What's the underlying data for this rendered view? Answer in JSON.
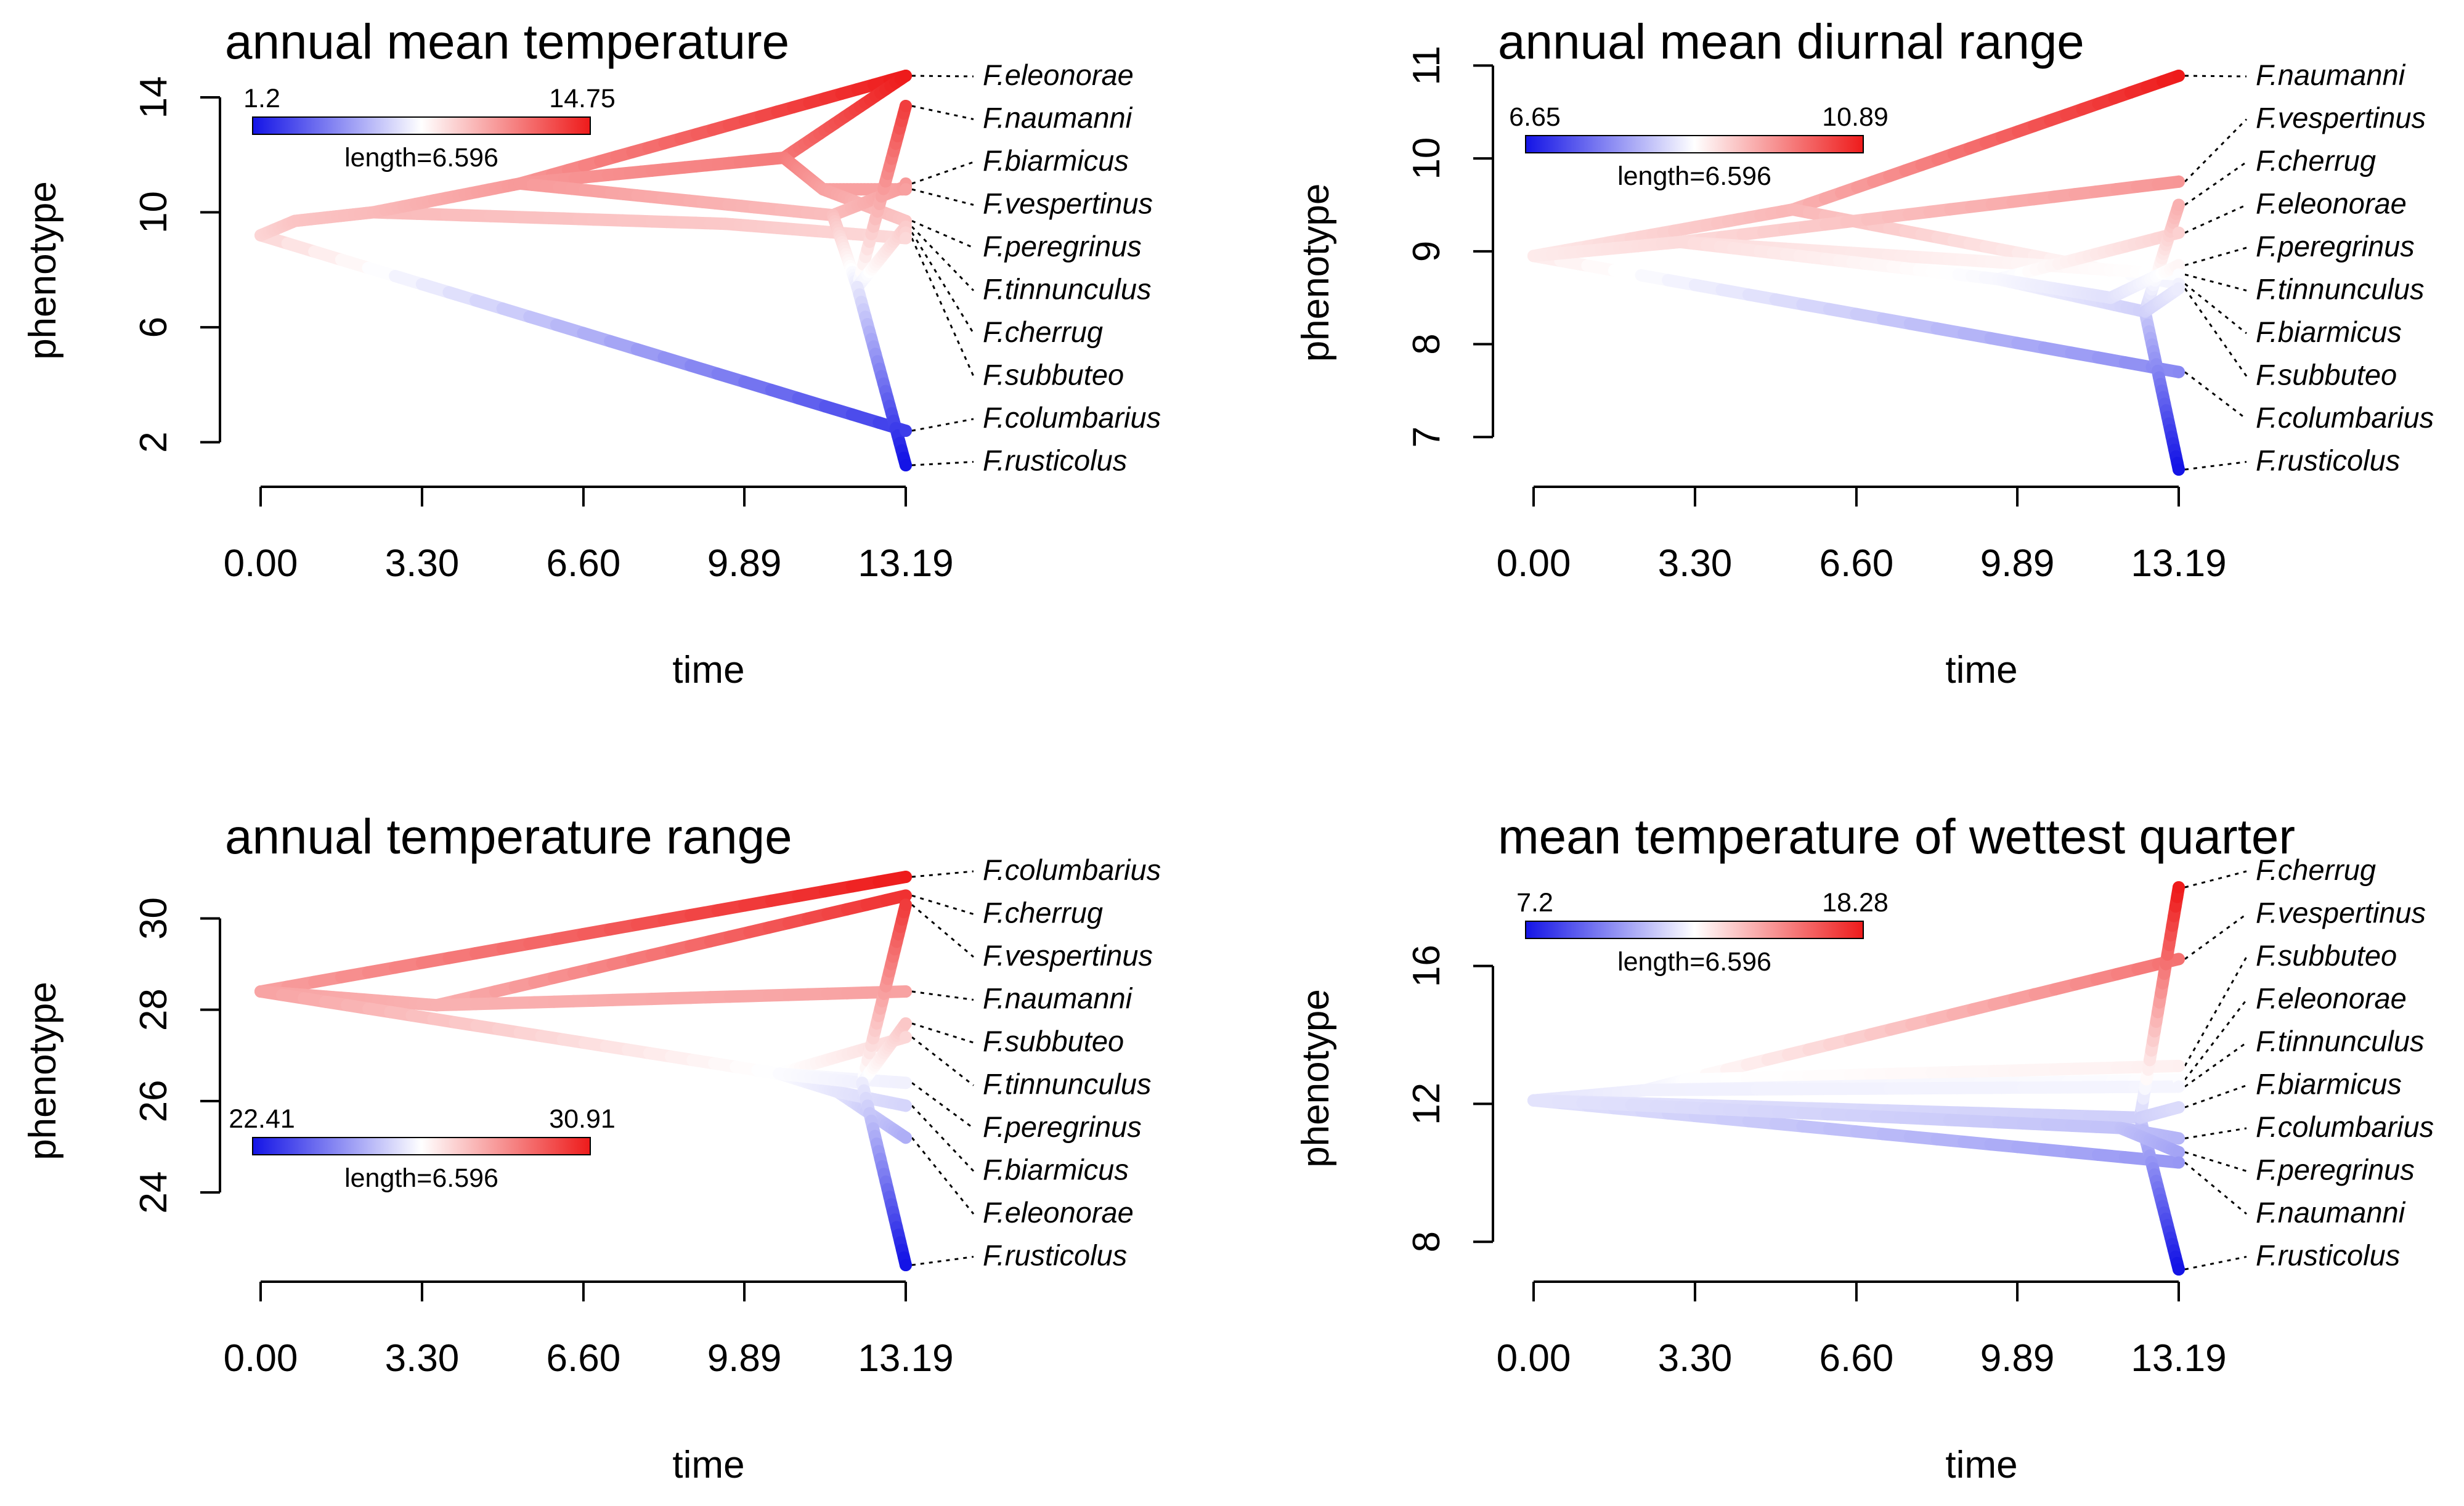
{
  "chart_data": [
    {
      "type": "line",
      "title": "annual mean temperature",
      "xlabel": "time",
      "ylabel": "phenotype",
      "xticks": [
        "0.00",
        "3.30",
        "6.60",
        "9.89",
        "13.19"
      ],
      "xlim": [
        0,
        13.19
      ],
      "yticks": [
        "2",
        "6",
        "10",
        "14"
      ],
      "ylim": [
        1.2,
        14.75
      ],
      "colorbar": {
        "min": "1.2",
        "max": "14.75",
        "length": "length=6.596",
        "low": "#1414e6",
        "mid": "#ffffff",
        "high": "#ee1b1b"
      },
      "tips": [
        {
          "name": "F.eleonorae",
          "value": 14.75
        },
        {
          "name": "F.naumanni",
          "value": 13.7
        },
        {
          "name": "F.biarmicus",
          "value": 11.0
        },
        {
          "name": "F.vespertinus",
          "value": 10.8
        },
        {
          "name": "F.peregrinus",
          "value": 9.7
        },
        {
          "name": "F.tinnunculus",
          "value": 9.5
        },
        {
          "name": "F.cherrug",
          "value": 9.3
        },
        {
          "name": "F.subbuteo",
          "value": 9.1
        },
        {
          "name": "F.columbarius",
          "value": 2.4
        },
        {
          "name": "F.rusticolus",
          "value": 1.2
        }
      ],
      "branches": [
        {
          "t": [
            0,
            13.19
          ],
          "v": [
            9.2,
            2.4
          ]
        },
        {
          "t": [
            0,
            0.7,
            2.3
          ],
          "v": [
            9.2,
            9.7,
            10.0
          ]
        },
        {
          "t": [
            2.3,
            9.5,
            13.19
          ],
          "v": [
            10.0,
            9.6,
            9.1
          ]
        },
        {
          "t": [
            2.3,
            5.3
          ],
          "v": [
            10.0,
            11.0
          ]
        },
        {
          "t": [
            5.3,
            13.19
          ],
          "v": [
            11.0,
            14.75
          ]
        },
        {
          "t": [
            5.3,
            10.7
          ],
          "v": [
            11.0,
            11.9
          ]
        },
        {
          "t": [
            10.7,
            13.19
          ],
          "v": [
            11.9,
            14.75
          ]
        },
        {
          "t": [
            10.7,
            11.5
          ],
          "v": [
            11.9,
            10.8
          ]
        },
        {
          "t": [
            11.5,
            13.19
          ],
          "v": [
            10.8,
            10.8
          ]
        },
        {
          "t": [
            11.5,
            13.19
          ],
          "v": [
            10.8,
            9.7
          ]
        },
        {
          "t": [
            5.3,
            11.7
          ],
          "v": [
            11.0,
            9.9
          ]
        },
        {
          "t": [
            11.7,
            13.19
          ],
          "v": [
            9.9,
            10.9
          ]
        },
        {
          "t": [
            11.7,
            12.2
          ],
          "v": [
            9.9,
            7.4
          ]
        },
        {
          "t": [
            12.2,
            13.19
          ],
          "v": [
            7.4,
            13.7
          ]
        },
        {
          "t": [
            12.2,
            13.19
          ],
          "v": [
            7.4,
            9.5
          ]
        },
        {
          "t": [
            12.2,
            13.19
          ],
          "v": [
            7.4,
            1.2
          ]
        }
      ]
    },
    {
      "type": "line",
      "title": "annual mean diurnal range",
      "xlabel": "time",
      "ylabel": "phenotype",
      "xticks": [
        "0.00",
        "3.30",
        "6.60",
        "9.89",
        "13.19"
      ],
      "xlim": [
        0,
        13.19
      ],
      "yticks": [
        "7",
        "8",
        "9",
        "10",
        "11"
      ],
      "ylim": [
        6.65,
        10.89
      ],
      "colorbar": {
        "min": "6.65",
        "max": "10.89",
        "length": "length=6.596",
        "low": "#1414e6",
        "mid": "#ffffff",
        "high": "#ee1b1b"
      },
      "tips": [
        {
          "name": "F.naumanni",
          "value": 10.89
        },
        {
          "name": "F.vespertinus",
          "value": 9.75
        },
        {
          "name": "F.cherrug",
          "value": 9.5
        },
        {
          "name": "F.eleonorae",
          "value": 9.2
        },
        {
          "name": "F.peregrinus",
          "value": 8.85
        },
        {
          "name": "F.tinnunculus",
          "value": 8.75
        },
        {
          "name": "F.biarmicus",
          "value": 8.65
        },
        {
          "name": "F.subbuteo",
          "value": 8.6
        },
        {
          "name": "F.columbarius",
          "value": 7.7
        },
        {
          "name": "F.rusticolus",
          "value": 6.65
        }
      ],
      "branches": [
        {
          "t": [
            0,
            13.19
          ],
          "v": [
            8.95,
            7.7
          ]
        },
        {
          "t": [
            0,
            5.3
          ],
          "v": [
            8.95,
            9.45
          ]
        },
        {
          "t": [
            5.3,
            13.19
          ],
          "v": [
            9.45,
            10.89
          ]
        },
        {
          "t": [
            5.3,
            13.19
          ],
          "v": [
            9.45,
            8.65
          ]
        },
        {
          "t": [
            0,
            3.0
          ],
          "v": [
            8.95,
            9.1
          ]
        },
        {
          "t": [
            3.0,
            13.19
          ],
          "v": [
            9.1,
            9.75
          ]
        },
        {
          "t": [
            3.0,
            9.0,
            13.19
          ],
          "v": [
            9.1,
            8.9,
            8.75
          ]
        },
        {
          "t": [
            3.0,
            9.5
          ],
          "v": [
            9.1,
            8.7
          ]
        },
        {
          "t": [
            9.5,
            13.19
          ],
          "v": [
            8.7,
            9.2
          ]
        },
        {
          "t": [
            9.5,
            12.5
          ],
          "v": [
            8.7,
            8.35
          ]
        },
        {
          "t": [
            12.5,
            13.19
          ],
          "v": [
            8.35,
            9.5
          ]
        },
        {
          "t": [
            12.5,
            13.19
          ],
          "v": [
            8.35,
            6.65
          ]
        },
        {
          "t": [
            12.5,
            13.19
          ],
          "v": [
            8.35,
            8.6
          ]
        },
        {
          "t": [
            9.5,
            11.8
          ],
          "v": [
            8.7,
            8.5
          ]
        },
        {
          "t": [
            11.8,
            13.19
          ],
          "v": [
            8.5,
            8.85
          ]
        }
      ]
    },
    {
      "type": "line",
      "title": "annual temperature range",
      "xlabel": "time",
      "ylabel": "phenotype",
      "xticks": [
        "0.00",
        "3.30",
        "6.60",
        "9.89",
        "13.19"
      ],
      "xlim": [
        0,
        13.19
      ],
      "yticks": [
        "24",
        "26",
        "28",
        "30"
      ],
      "ylim": [
        22.41,
        30.91
      ],
      "colorbar": {
        "min": "22.41",
        "max": "30.91",
        "length": "length=6.596",
        "low": "#1414e6",
        "mid": "#ffffff",
        "high": "#ee1b1b"
      },
      "tips": [
        {
          "name": "F.columbarius",
          "value": 30.91
        },
        {
          "name": "F.cherrug",
          "value": 30.5
        },
        {
          "name": "F.vespertinus",
          "value": 30.3
        },
        {
          "name": "F.naumanni",
          "value": 28.4
        },
        {
          "name": "F.subbuteo",
          "value": 27.7
        },
        {
          "name": "F.tinnunculus",
          "value": 27.4
        },
        {
          "name": "F.peregrinus",
          "value": 26.4
        },
        {
          "name": "F.biarmicus",
          "value": 25.9
        },
        {
          "name": "F.eleonorae",
          "value": 25.2
        },
        {
          "name": "F.rusticolus",
          "value": 22.41
        }
      ],
      "branches": [
        {
          "t": [
            0,
            13.19
          ],
          "v": [
            28.4,
            30.91
          ]
        },
        {
          "t": [
            0,
            3.6
          ],
          "v": [
            28.4,
            28.1
          ]
        },
        {
          "t": [
            3.6,
            13.19
          ],
          "v": [
            28.1,
            30.5
          ]
        },
        {
          "t": [
            3.6,
            13.19
          ],
          "v": [
            28.1,
            28.4
          ]
        },
        {
          "t": [
            0,
            10.6
          ],
          "v": [
            28.4,
            26.6
          ]
        },
        {
          "t": [
            10.6,
            13.19
          ],
          "v": [
            26.6,
            27.4
          ]
        },
        {
          "t": [
            10.6,
            13.19
          ],
          "v": [
            26.6,
            26.4
          ]
        },
        {
          "t": [
            10.6,
            11.8
          ],
          "v": [
            26.6,
            26.2
          ]
        },
        {
          "t": [
            11.8,
            13.19
          ],
          "v": [
            26.2,
            25.2
          ]
        },
        {
          "t": [
            11.8,
            13.19
          ],
          "v": [
            26.2,
            25.9
          ]
        },
        {
          "t": [
            10.6,
            12.3
          ],
          "v": [
            26.6,
            26.4
          ]
        },
        {
          "t": [
            12.3,
            13.19
          ],
          "v": [
            26.4,
            30.3
          ]
        },
        {
          "t": [
            12.3,
            13.19
          ],
          "v": [
            26.4,
            27.7
          ]
        },
        {
          "t": [
            12.3,
            13.19
          ],
          "v": [
            26.4,
            22.41
          ]
        }
      ]
    },
    {
      "type": "line",
      "title": "mean temperature of wettest quarter",
      "xlabel": "time",
      "ylabel": "phenotype",
      "xticks": [
        "0.00",
        "3.30",
        "6.60",
        "9.89",
        "13.19"
      ],
      "xlim": [
        0,
        13.19
      ],
      "yticks": [
        "8",
        "12",
        "16"
      ],
      "ylim": [
        7.2,
        18.28
      ],
      "colorbar": {
        "min": "7.2",
        "max": "18.28",
        "length": "length=6.596",
        "low": "#1414e6",
        "mid": "#ffffff",
        "high": "#ee1b1b"
      },
      "tips": [
        {
          "name": "F.cherrug",
          "value": 18.28
        },
        {
          "name": "F.vespertinus",
          "value": 16.2
        },
        {
          "name": "F.subbuteo",
          "value": 13.1
        },
        {
          "name": "F.eleonorae",
          "value": 12.7
        },
        {
          "name": "F.tinnunculus",
          "value": 12.5
        },
        {
          "name": "F.biarmicus",
          "value": 11.9
        },
        {
          "name": "F.columbarius",
          "value": 11.0
        },
        {
          "name": "F.peregrinus",
          "value": 10.6
        },
        {
          "name": "F.naumanni",
          "value": 10.3
        },
        {
          "name": "F.rusticolus",
          "value": 7.2
        }
      ],
      "branches": [
        {
          "t": [
            0,
            13.19
          ],
          "v": [
            12.1,
            10.3
          ]
        },
        {
          "t": [
            0,
            2.3
          ],
          "v": [
            12.1,
            12.4
          ]
        },
        {
          "t": [
            2.3,
            3.1
          ],
          "v": [
            12.4,
            12.7
          ]
        },
        {
          "t": [
            3.1,
            13.19
          ],
          "v": [
            12.7,
            16.2
          ]
        },
        {
          "t": [
            3.1,
            13.19
          ],
          "v": [
            12.7,
            13.1
          ]
        },
        {
          "t": [
            2.3,
            13.19
          ],
          "v": [
            12.4,
            12.7
          ]
        },
        {
          "t": [
            2.3,
            13.19
          ],
          "v": [
            12.4,
            12.5
          ]
        },
        {
          "t": [
            0,
            12.4
          ],
          "v": [
            12.1,
            11.6
          ]
        },
        {
          "t": [
            12.4,
            13.19
          ],
          "v": [
            11.6,
            18.28
          ]
        },
        {
          "t": [
            12.4,
            13.19
          ],
          "v": [
            11.6,
            7.2
          ]
        },
        {
          "t": [
            12.4,
            13.19
          ],
          "v": [
            11.6,
            11.9
          ]
        },
        {
          "t": [
            0,
            12.0
          ],
          "v": [
            12.1,
            11.3
          ]
        },
        {
          "t": [
            12.0,
            13.19
          ],
          "v": [
            11.3,
            11.0
          ]
        },
        {
          "t": [
            12.0,
            13.19
          ],
          "v": [
            11.3,
            10.6
          ]
        }
      ]
    }
  ]
}
